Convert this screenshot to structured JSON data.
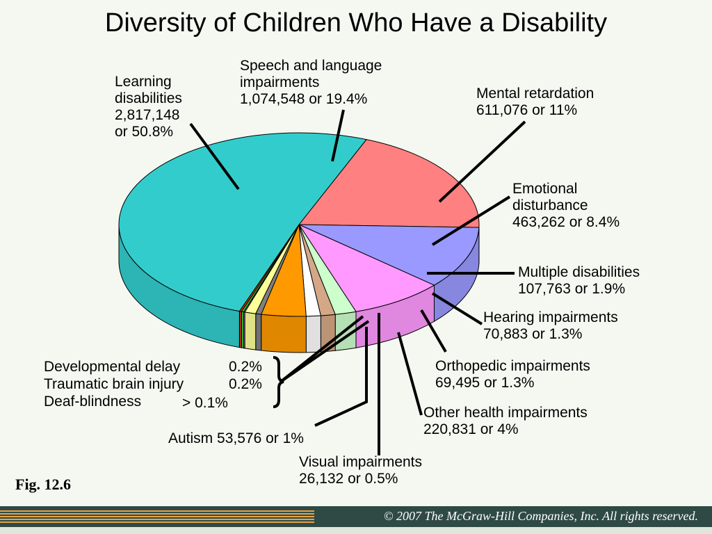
{
  "chart_data": {
    "type": "pie",
    "title": "Diversity of Children Who Have a Disability",
    "slices": [
      {
        "key": "speech",
        "label": "Speech and language impairments",
        "count": "1,074,548",
        "pct": 19.4,
        "color": "#ff8080"
      },
      {
        "key": "mental",
        "label": "Mental retardation",
        "count": "611,076",
        "pct": 11.0,
        "color": "#9999ff"
      },
      {
        "key": "emotional",
        "label": "Emotional disturbance",
        "count": "463,262",
        "pct": 8.4,
        "color": "#ff99ff"
      },
      {
        "key": "multiple",
        "label": "Multiple disabilities",
        "count": "107,763",
        "pct": 1.9,
        "color": "#ccffcc"
      },
      {
        "key": "hearing",
        "label": "Hearing impairments",
        "count": "70,883",
        "pct": 1.3,
        "color": "#d4a886"
      },
      {
        "key": "ortho",
        "label": "Orthopedic impairments",
        "count": "69,495",
        "pct": 1.3,
        "color": "#ffffff"
      },
      {
        "key": "otherh",
        "label": "Other health impairments",
        "count": "220,831",
        "pct": 4.0,
        "color": "#ff9900"
      },
      {
        "key": "visual",
        "label": "Visual impairments",
        "count": "26,132",
        "pct": 0.5,
        "color": "#808080"
      },
      {
        "key": "autism",
        "label": "Autism",
        "count": "53,576",
        "pct": 1.0,
        "color": "#ffff99"
      },
      {
        "key": "deafblind",
        "label": "Deaf-blindness",
        "count": "",
        "pct": 0.1,
        "color": "#cc99ff"
      },
      {
        "key": "tbi",
        "label": "Traumatic brain injury",
        "count": "",
        "pct": 0.2,
        "color": "#33cc33"
      },
      {
        "key": "devdelay",
        "label": "Developmental delay",
        "count": "",
        "pct": 0.2,
        "color": "#cc3300"
      },
      {
        "key": "learning",
        "label": "Learning disabilities",
        "count": "2,817,148",
        "pct": 50.8,
        "color": "#33cccc"
      }
    ]
  },
  "labels": {
    "learning": [
      "Learning",
      "disabilities",
      "2,817,148",
      "or 50.8%"
    ],
    "speech": [
      "Speech and language",
      "impairments",
      "1,074,548 or 19.4%"
    ],
    "mental": [
      "Mental retardation",
      "611,076 or 11%"
    ],
    "emotional": [
      "Emotional",
      "disturbance",
      "463,262 or 8.4%"
    ],
    "multiple": [
      "Multiple disabilities",
      "107,763 or 1.9%"
    ],
    "hearing": [
      "Hearing impairments",
      "70,883 or 1.3%"
    ],
    "ortho": [
      "Orthopedic impairments",
      "69,495 or 1.3%"
    ],
    "otherh": [
      "Other health impairments",
      "220,831 or 4%"
    ],
    "visual": [
      "Visual impairments",
      "26,132 or 0.5%"
    ],
    "autism": "Autism  53,576 or 1%",
    "small": {
      "devdelay_name": "Developmental delay",
      "devdelay_pct": "0.2%",
      "tbi_name": "Traumatic brain injury",
      "tbi_pct": "0.2%",
      "deafblind_name": "Deaf-blindness",
      "deafblind_pct": "> 0.1%"
    }
  },
  "figure_label": "Fig. 12.6",
  "footer": {
    "copyright": "© 2007 The McGraw-Hill Companies, Inc. All rights reserved."
  }
}
